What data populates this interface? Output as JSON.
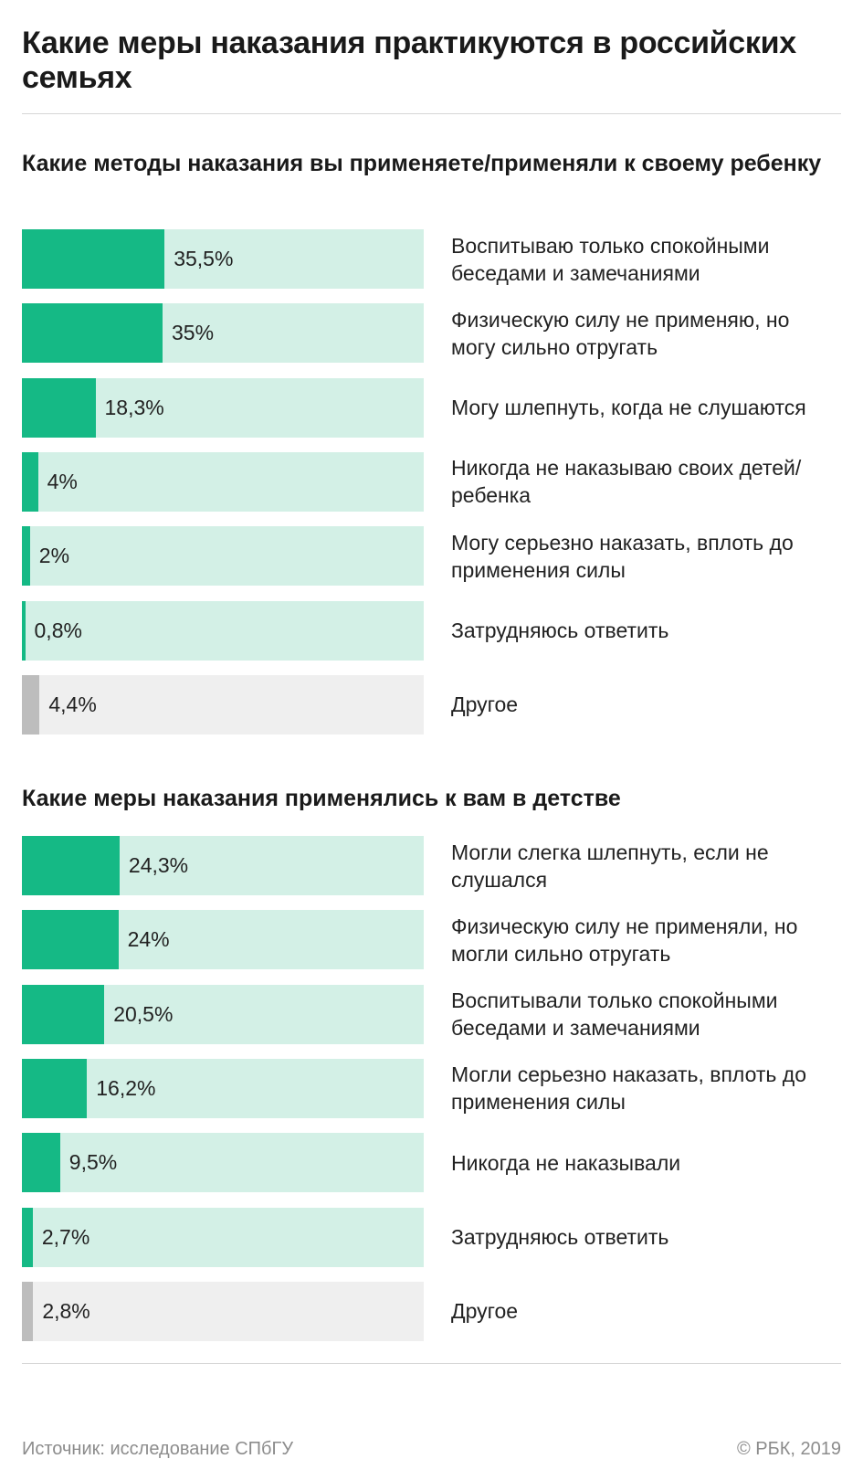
{
  "title": "Какие меры наказания практикуются в российских семьях",
  "colors": {
    "primary_fill": "#15b985",
    "primary_track": "#d3f0e6",
    "other_fill": "#bdbdbd",
    "other_track": "#efefef"
  },
  "chart_data": [
    {
      "type": "bar",
      "orientation": "horizontal",
      "title": "Какие методы наказания вы применяете/применяли к своему ребенку",
      "xlim": [
        0,
        100
      ],
      "categories": [
        "Воспитываю только спокойными беседами и замечаниями",
        "Физическую силу не применяю, но могу сильно отругать",
        "Могу шлепнуть, когда не слушаются",
        "Никогда не наказываю своих детей/ ребенка",
        "Могу серьезно наказать, вплоть до применения силы",
        "Затрудняюсь ответить",
        "Другое"
      ],
      "values": [
        35.5,
        35,
        18.3,
        4,
        2,
        0.8,
        4.4
      ],
      "labels": [
        "35,5%",
        "35%",
        "18,3%",
        "4%",
        "2%",
        "0,8%",
        "4,4%"
      ],
      "highlight": [
        "primary",
        "primary",
        "primary",
        "primary",
        "primary",
        "primary",
        "other"
      ]
    },
    {
      "type": "bar",
      "orientation": "horizontal",
      "title": "Какие меры наказания применялись к вам в детстве",
      "xlim": [
        0,
        100
      ],
      "categories": [
        "Могли слегка шлепнуть, если не слушался",
        "Физическую силу не применяли, но могли сильно отругать",
        "Воспитывали только спокойными беседами и замечаниями",
        "Могли серьезно наказать, вплоть до применения силы",
        "Никогда не наказывали",
        "Затрудняюсь ответить",
        "Другое"
      ],
      "values": [
        24.3,
        24,
        20.5,
        16.2,
        9.5,
        2.7,
        2.8
      ],
      "labels": [
        "24,3%",
        "24%",
        "20,5%",
        "16,2%",
        "9,5%",
        "2,7%",
        "2,8%"
      ],
      "highlight": [
        "primary",
        "primary",
        "primary",
        "primary",
        "primary",
        "primary",
        "other"
      ]
    }
  ],
  "source": "Источник: исследование СПбГУ",
  "copyright": "© РБК, 2019"
}
